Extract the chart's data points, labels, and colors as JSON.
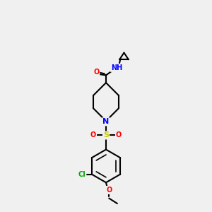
{
  "bg_color": "#f0f0f0",
  "bond_color": "#000000",
  "bond_width": 1.5,
  "atom_colors": {
    "O": "#ff0000",
    "N": "#0000ff",
    "S": "#cccc00",
    "Cl": "#00aa00",
    "C": "#000000",
    "H": "#008888"
  },
  "figsize": [
    3.0,
    3.0
  ],
  "dpi": 100
}
